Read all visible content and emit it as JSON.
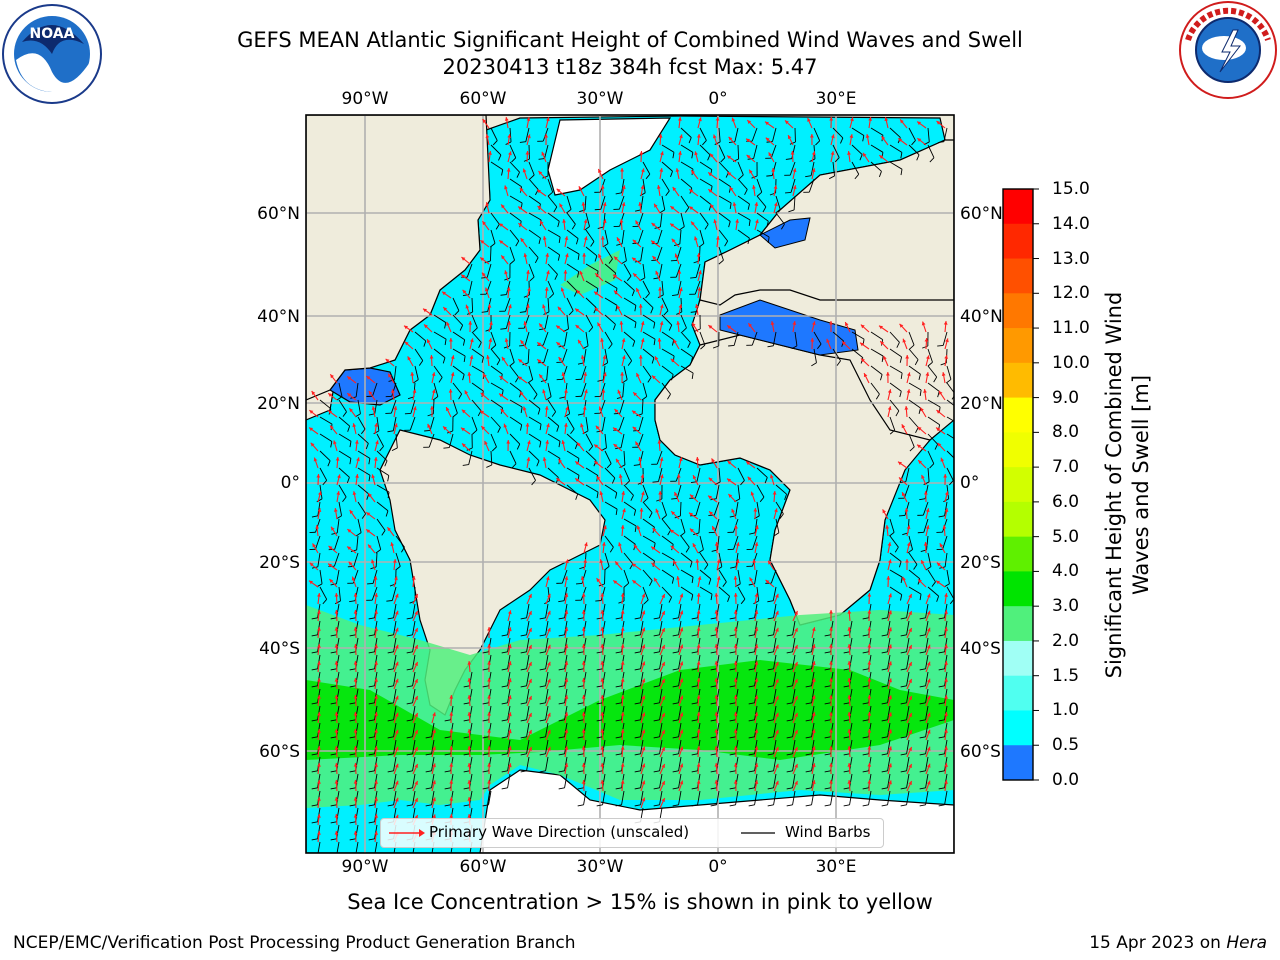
{
  "header": {
    "title_line1": "GEFS MEAN Atlantic Significant Height of Combined Wind Waves and Swell",
    "title_line2": "20230413 t18z 384h fcst   Max: 5.47"
  },
  "logos": {
    "left": {
      "name": "NOAA",
      "text": "NOAA",
      "ring_text": "NATIONAL OCEANIC AND ATMOSPHERIC ADMINISTRATION · U.S. DEPARTMENT OF COMMERCE"
    },
    "right": {
      "name": "National Weather Service",
      "ring_text": "NATIONAL WEATHER SERVICE"
    }
  },
  "map": {
    "lon_ticks": [
      "90°W",
      "60°W",
      "30°W",
      "0°",
      "30°E"
    ],
    "lat_ticks_left": [
      "60°N",
      "40°N",
      "20°N",
      "0°",
      "20°S",
      "40°S",
      "60°S"
    ],
    "lat_ticks_right": [
      "60°N",
      "40°N",
      "20°N",
      "0°",
      "20°S",
      "40°S",
      "60°S"
    ],
    "colors": {
      "land": "#efecdc",
      "ocean_low": "#00f0ff",
      "ocean_mid": "#a0fff5",
      "southern_high": "#50f07c",
      "southern_peak": "#00e400",
      "enclosed_seas": "#1e78ff",
      "ice_edge": "#ff40ff",
      "wave_arrow": "#ff2020",
      "wind_barb": "#000000"
    },
    "legend": {
      "wave_direction": "Primary Wave Direction (unscaled)",
      "wind_barbs": "Wind Barbs"
    }
  },
  "colorbar": {
    "title": "Significant Height of Combined Wind Waves and Swell [m]",
    "levels": [
      "15.0",
      "14.0",
      "13.0",
      "12.0",
      "11.0",
      "10.0",
      "9.0",
      "8.0",
      "7.0",
      "6.0",
      "5.0",
      "4.0",
      "3.0",
      "2.0",
      "1.5",
      "1.0",
      "0.5",
      "0.0"
    ],
    "colors": [
      "#ff0000",
      "#ff2800",
      "#ff5000",
      "#ff7800",
      "#ff9900",
      "#ffbb00",
      "#ffff00",
      "#f0ff00",
      "#d2ff00",
      "#b4ff00",
      "#5ff000",
      "#00e400",
      "#50f07c",
      "#a0fff5",
      "#50fff0",
      "#00ffff",
      "#1e78ff",
      "#0000ff"
    ]
  },
  "note": "Sea Ice Concentration > 15% is shown in pink to yellow",
  "footer": {
    "left": "NCEP/EMC/Verification Post Processing Product Generation Branch",
    "right_date": "15 Apr 2023 on ",
    "right_host": "Hera"
  }
}
